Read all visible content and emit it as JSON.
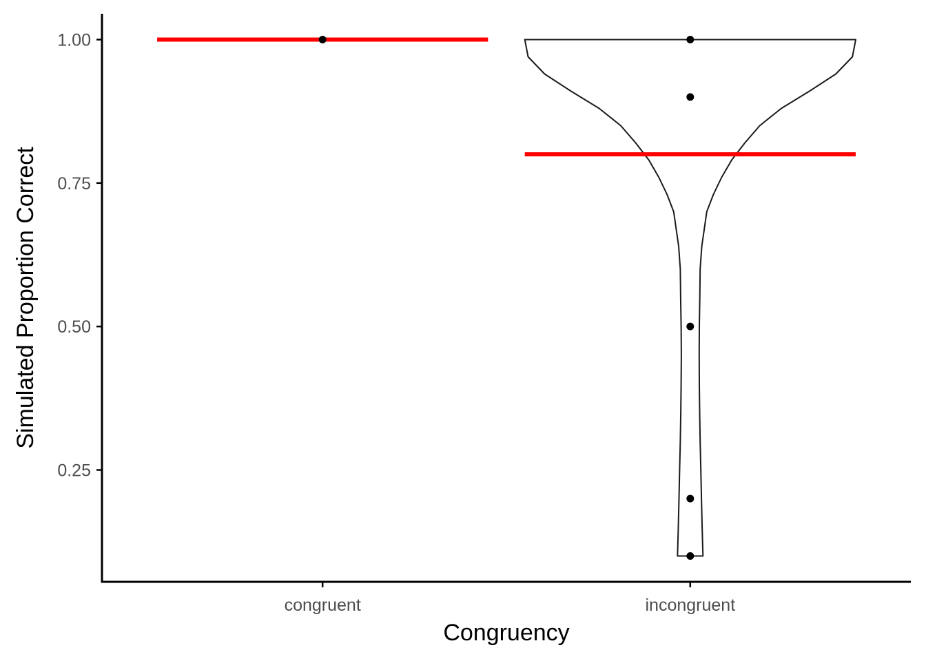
{
  "chart_data": {
    "type": "violin",
    "xlabel": "Congruency",
    "ylabel": "Simulated Proportion Correct",
    "categories": [
      "congruent",
      "incongruent"
    ],
    "ylim": [
      0.055,
      1.045
    ],
    "yticks": [
      {
        "value": 0.25,
        "label": "0.25"
      },
      {
        "value": 0.5,
        "label": "0.50"
      },
      {
        "value": 0.75,
        "label": "0.75"
      },
      {
        "value": 1.0,
        "label": "1.00"
      }
    ],
    "grid": false,
    "points": [
      {
        "category": "congruent",
        "values": [
          1.0
        ]
      },
      {
        "category": "incongruent",
        "values": [
          1.0,
          0.9,
          0.5,
          0.2,
          0.1
        ]
      }
    ],
    "means": [
      {
        "category": "congruent",
        "value": 1.0
      },
      {
        "category": "incongruent",
        "value": 0.8
      }
    ],
    "violins": [
      {
        "category": "incongruent",
        "ymin": 0.1,
        "ymax": 1.0,
        "density_profile": [
          [
            1.0,
            1.0
          ],
          [
            0.97,
            0.98
          ],
          [
            0.94,
            0.88
          ],
          [
            0.91,
            0.72
          ],
          [
            0.88,
            0.55
          ],
          [
            0.85,
            0.42
          ],
          [
            0.82,
            0.33
          ],
          [
            0.79,
            0.25
          ],
          [
            0.76,
            0.19
          ],
          [
            0.73,
            0.14
          ],
          [
            0.7,
            0.1
          ],
          [
            0.67,
            0.085
          ],
          [
            0.64,
            0.07
          ],
          [
            0.6,
            0.06
          ],
          [
            0.55,
            0.058
          ],
          [
            0.5,
            0.055
          ],
          [
            0.45,
            0.054
          ],
          [
            0.4,
            0.055
          ],
          [
            0.35,
            0.057
          ],
          [
            0.3,
            0.06
          ],
          [
            0.25,
            0.064
          ],
          [
            0.2,
            0.068
          ],
          [
            0.15,
            0.072
          ],
          [
            0.12,
            0.075
          ],
          [
            0.1,
            0.077
          ]
        ]
      }
    ],
    "colors": {
      "mean_line": "#ff0000",
      "points": "#000000",
      "violin_stroke": "#1a1a1a",
      "axis": "#000000",
      "tick_label": "#4d4d4d"
    }
  }
}
